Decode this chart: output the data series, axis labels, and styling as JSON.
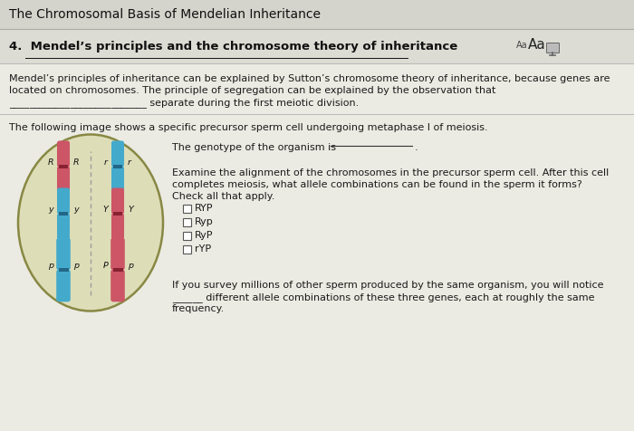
{
  "title": "The Chromosomal Basis of Mendelian Inheritance",
  "section_number": "4.",
  "section_title": "Mendel’s principles and the chromosome theory of inheritance",
  "para1_line1": "Mendel’s principles of inheritance can be explained by Sutton’s chromosome theory of inheritance, because genes are",
  "para1_line2": "located on chromosomes. The principle of segregation can be explained by the observation that",
  "para1_line3": "___________________________ separate during the first meiotic division.",
  "para2": "The following image shows a specific precursor sperm cell undergoing metaphase I of meiosis.",
  "genotype_text": "The genotype of the organism is",
  "genotype_line": "_______________",
  "examine_line1": "Examine the alignment of the chromosomes in the precursor sperm cell. After this cell",
  "examine_line2": "completes meiosis, what allele combinations can be found in the sperm it forms?",
  "examine_line3": "Check all that apply.",
  "checkboxes": [
    "RYP",
    "Ryp",
    "RyP",
    "rYP"
  ],
  "final_line1": "If you survey millions of other sperm produced by the same organism, you will notice",
  "final_line2": "______ different allele combinations of these three genes, each at roughly the same",
  "final_line3": "frequency.",
  "bg_top": "#d8d8d8",
  "bg_main": "#e8e8e0",
  "bg_section_header": "#e0e0d8",
  "header_bar_color": "#cccccc",
  "text_color": "#1a1a1a",
  "oval_fill": "#ddddb8",
  "oval_edge": "#888844",
  "chr_pink": "#cc5566",
  "chr_blue": "#44aacc",
  "centromere_dark_pink": "#882233",
  "centromere_dark_blue": "#226688",
  "dashed_line": "#999999"
}
